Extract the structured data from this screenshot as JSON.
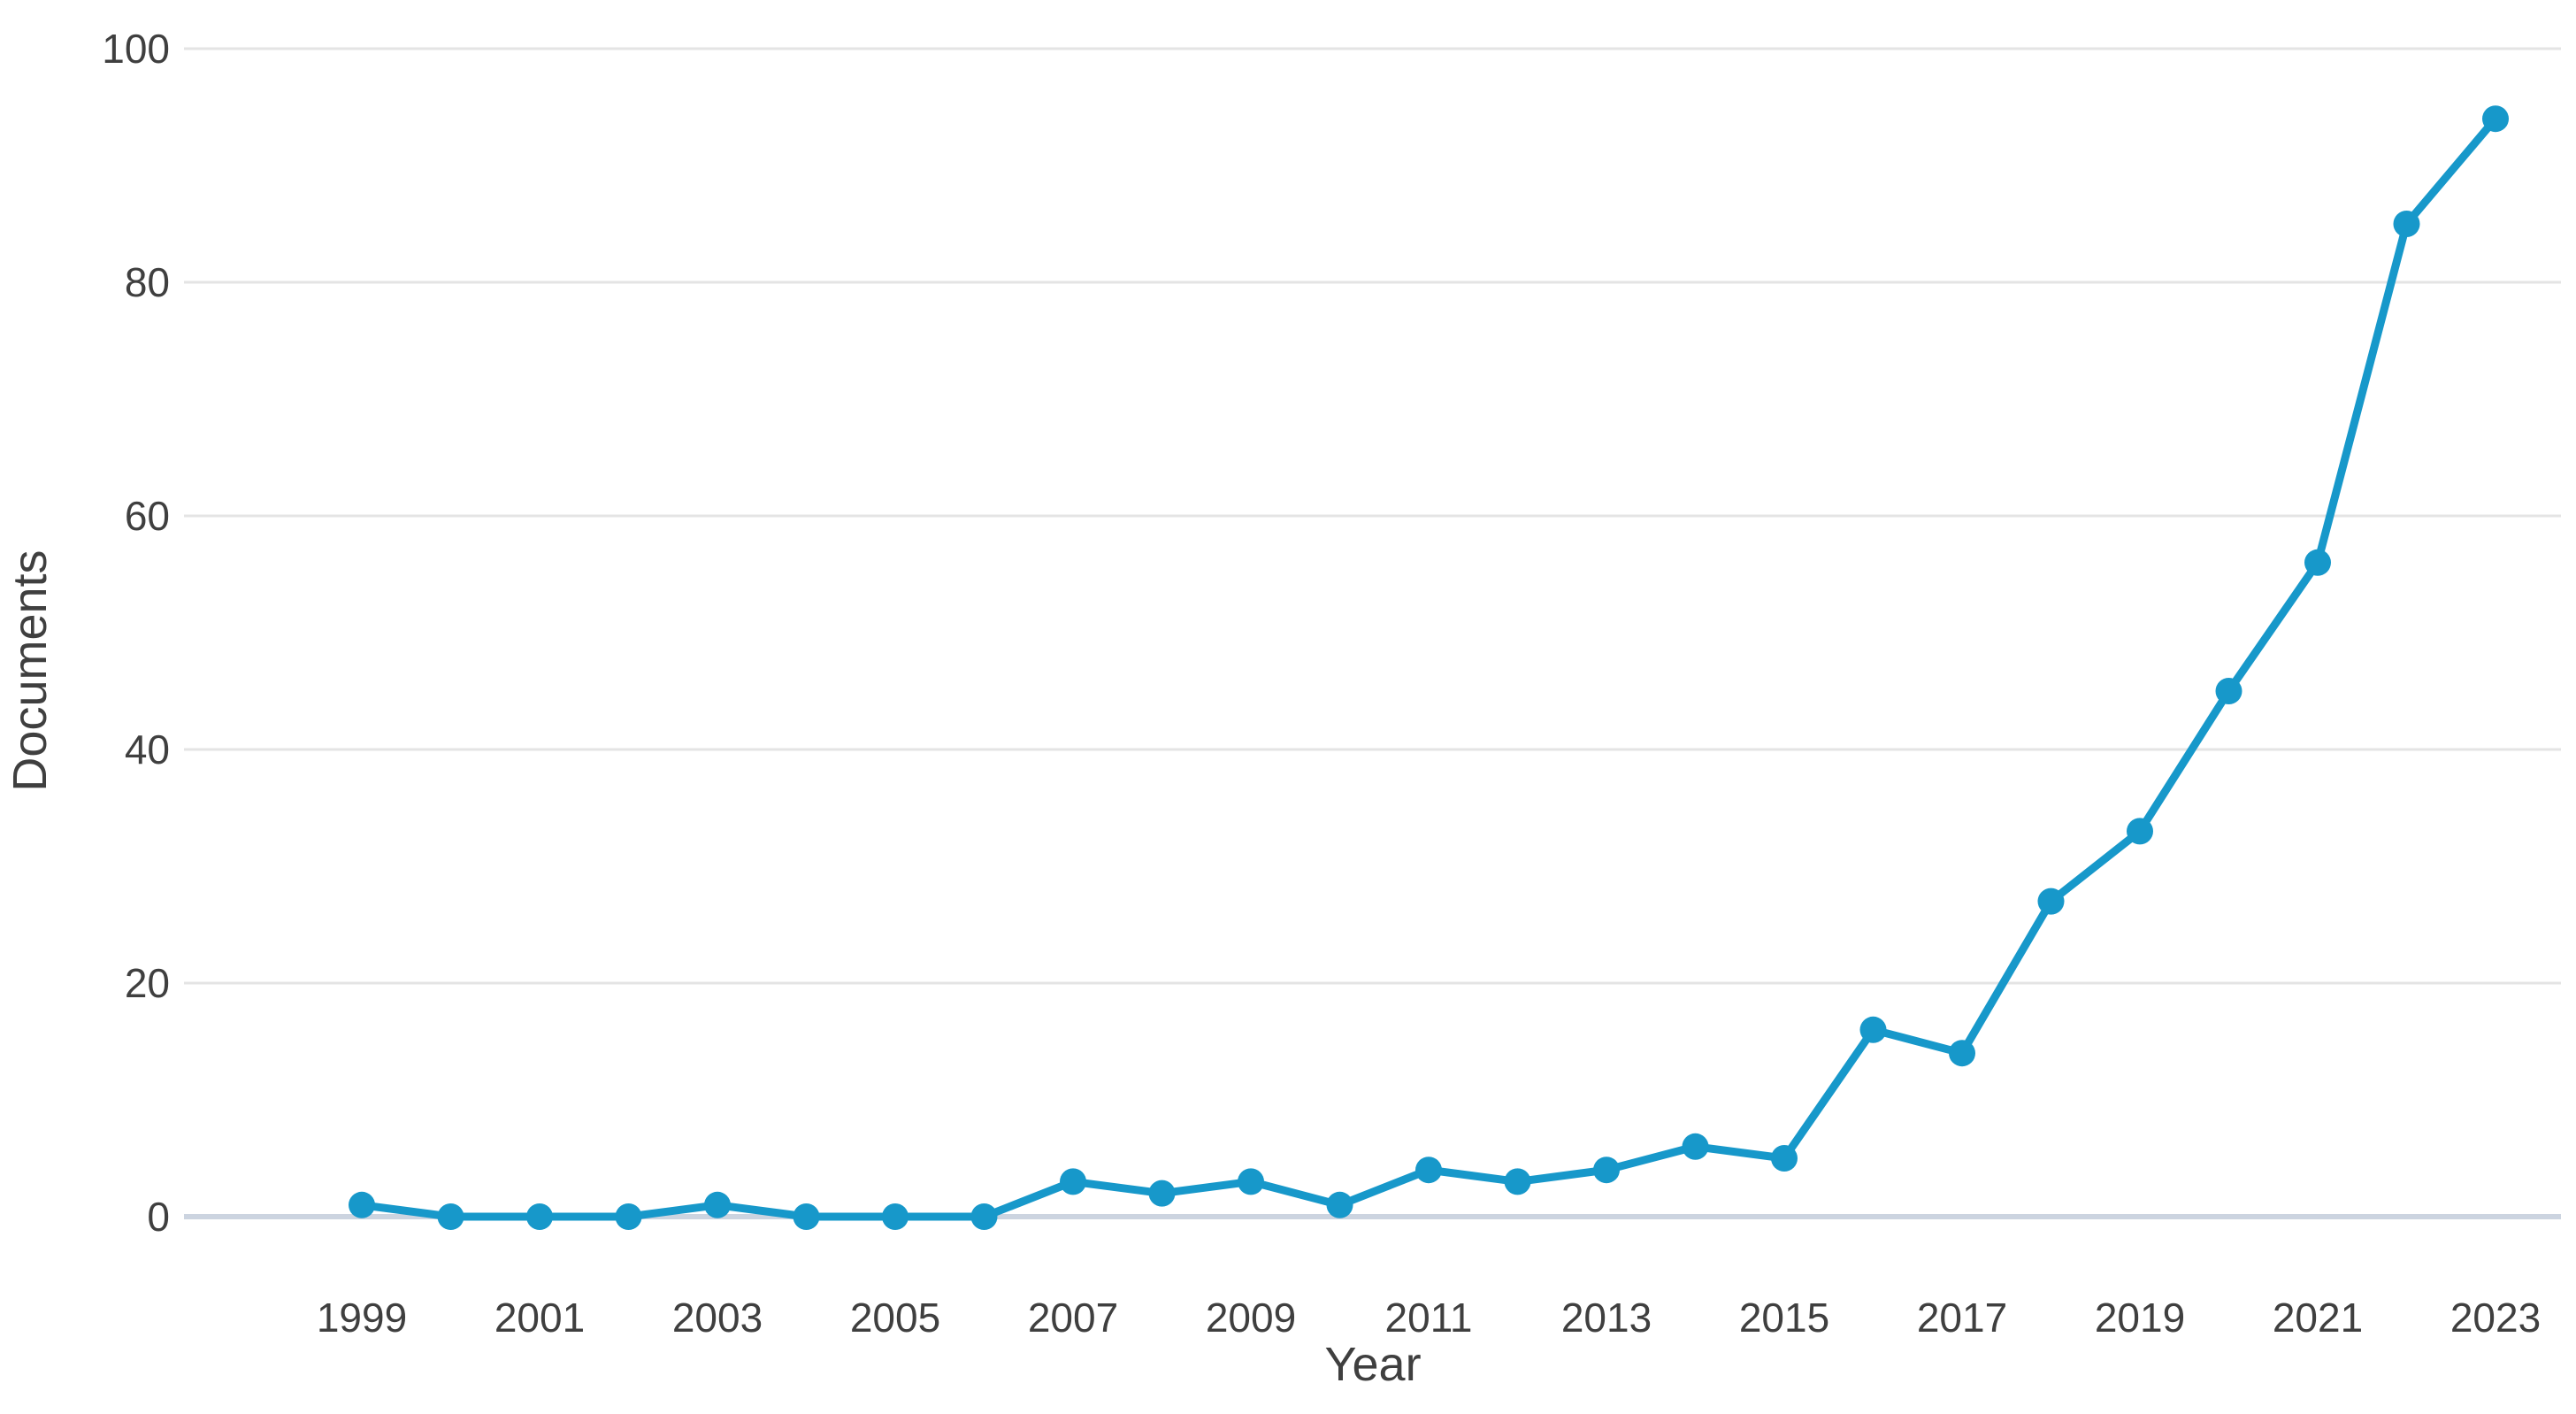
{
  "chart_data": {
    "type": "line",
    "title": "",
    "xlabel": "Year",
    "ylabel": "Documents",
    "x": [
      1999,
      2000,
      2001,
      2002,
      2003,
      2004,
      2005,
      2006,
      2007,
      2008,
      2009,
      2010,
      2011,
      2012,
      2013,
      2014,
      2015,
      2016,
      2017,
      2018,
      2019,
      2020,
      2021,
      2022,
      2023
    ],
    "series": [
      {
        "name": "Documents",
        "values": [
          1,
          0,
          0,
          0,
          1,
          0,
          0,
          0,
          3,
          2,
          3,
          1,
          4,
          3,
          4,
          6,
          5,
          16,
          14,
          27,
          33,
          45,
          56,
          85,
          94
        ]
      }
    ],
    "ylim": [
      0,
      100
    ],
    "yticks": [
      0,
      20,
      40,
      60,
      80,
      100
    ],
    "xticks": [
      1999,
      2001,
      2003,
      2005,
      2007,
      2009,
      2011,
      2013,
      2015,
      2017,
      2019,
      2021,
      2023
    ],
    "grid": "horizontal",
    "legend_position": "none",
    "colors": {
      "line": "#1798ca",
      "marker": "#1798ca",
      "gridline": "#e4e4e4",
      "baseline": "#ccd4e0",
      "text": "#3f3f3f",
      "background": "#ffffff"
    }
  }
}
